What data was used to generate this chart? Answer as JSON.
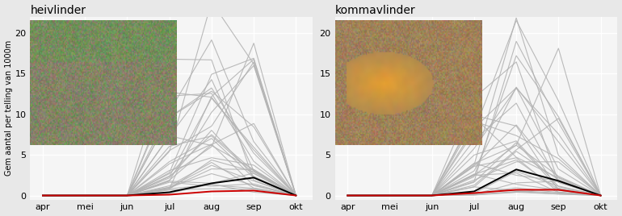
{
  "title_left": "heivlinder",
  "title_right": "kommavlinder",
  "ylabel": "Gem aantal per telling van 1000m",
  "x_labels": [
    "apr",
    "mei",
    "jun",
    "jul",
    "aug",
    "sep",
    "okt"
  ],
  "x_ticks": [
    0,
    1,
    2,
    3,
    4,
    5,
    6
  ],
  "ylim": [
    -0.5,
    22
  ],
  "yticks": [
    0,
    5,
    10,
    15,
    20
  ],
  "bg_color": "#f5f5f5",
  "grid_color": "#ffffff",
  "grey_color": "#b3b3b3",
  "black_color": "#000000",
  "red_color": "#cc0000",
  "n_grey_lines": 32,
  "seed": 42,
  "fig_bg": "#e8e8e8"
}
